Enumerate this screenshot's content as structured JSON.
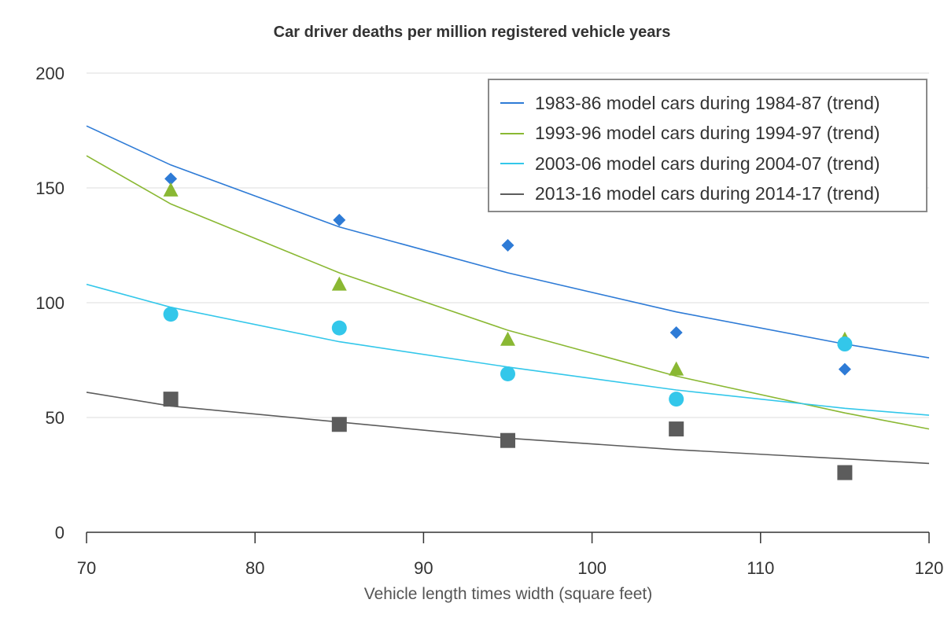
{
  "chart_data": {
    "type": "scatter",
    "title": "Car driver deaths per million registered vehicle years",
    "xlabel": "Vehicle length times width (square feet)",
    "ylabel": "",
    "xlim": [
      70,
      120
    ],
    "ylim": [
      0,
      200
    ],
    "x_ticks": [
      70,
      80,
      90,
      100,
      110,
      120
    ],
    "y_ticks": [
      0,
      50,
      100,
      150,
      200
    ],
    "grid": "horizontal",
    "legend_position": "top-right",
    "series": [
      {
        "name": "1983-86 model cars during 1984-87 (trend)",
        "color": "#2e7bd6",
        "marker": "diamond",
        "points": {
          "x": [
            75,
            85,
            95,
            105,
            115
          ],
          "y": [
            154,
            136,
            125,
            87,
            71
          ]
        },
        "trend": {
          "x": [
            70,
            75,
            85,
            95,
            105,
            115,
            120
          ],
          "y": [
            177,
            160,
            133,
            113,
            96,
            82,
            76
          ]
        }
      },
      {
        "name": "1993-96 model cars during 1994-97 (trend)",
        "color": "#8ab833",
        "marker": "triangle",
        "points": {
          "x": [
            75,
            85,
            95,
            105,
            115
          ],
          "y": [
            149,
            108,
            84,
            71,
            84
          ]
        },
        "trend": {
          "x": [
            70,
            75,
            85,
            95,
            105,
            115,
            120
          ],
          "y": [
            164,
            143,
            113,
            88,
            68,
            52,
            45
          ]
        }
      },
      {
        "name": "2003-06 model cars during 2004-07 (trend)",
        "color": "#33c7ea",
        "marker": "circle",
        "points": {
          "x": [
            75,
            85,
            95,
            105,
            115
          ],
          "y": [
            95,
            89,
            69,
            58,
            82
          ]
        },
        "trend": {
          "x": [
            70,
            75,
            85,
            95,
            105,
            115,
            120
          ],
          "y": [
            108,
            98,
            83,
            72,
            62,
            54,
            51
          ]
        }
      },
      {
        "name": "2013-16 model cars during 2014-17 (trend)",
        "color": "#5c5c5c",
        "marker": "square",
        "points": {
          "x": [
            75,
            85,
            95,
            105,
            115
          ],
          "y": [
            58,
            47,
            40,
            45,
            26
          ]
        },
        "trend": {
          "x": [
            70,
            75,
            85,
            95,
            105,
            115,
            120
          ],
          "y": [
            61,
            55,
            48,
            41,
            36,
            32,
            30
          ]
        }
      }
    ]
  }
}
